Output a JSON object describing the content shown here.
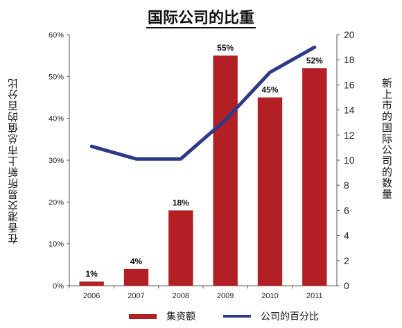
{
  "title": "国际公司的比重",
  "left_axis_label": "在香港交易所新上市总值的百分比",
  "right_axis_label": "新上市的国际公司的数量",
  "legend": {
    "bar": "集资额",
    "line": "公司的百分比"
  },
  "colors": {
    "bar": "#b22025",
    "line": "#2e3a86",
    "axis": "#555555"
  },
  "chart_data": {
    "type": "bar",
    "categories": [
      "2006",
      "2007",
      "2008",
      "2009",
      "2010",
      "2011"
    ],
    "series": [
      {
        "name": "集资额",
        "type": "bar",
        "axis": "left",
        "values": [
          1,
          4,
          18,
          55,
          45,
          52
        ],
        "labels": [
          "1%",
          "4%",
          "18%",
          "55%",
          "45%",
          "52%"
        ]
      },
      {
        "name": "公司的百分比",
        "type": "line",
        "axis": "right",
        "values": [
          11.1,
          10.1,
          10.1,
          13.2,
          17.0,
          19.0
        ]
      }
    ],
    "y_left": {
      "lim": [
        0,
        60
      ],
      "ticks": [
        "0%",
        "10%",
        "20%",
        "30%",
        "40%",
        "50%",
        "60%"
      ]
    },
    "y_right": {
      "lim": [
        0,
        20
      ],
      "ticks": [
        "0",
        "2",
        "4",
        "6",
        "8",
        "10",
        "12",
        "14",
        "16",
        "18",
        "20"
      ]
    }
  }
}
